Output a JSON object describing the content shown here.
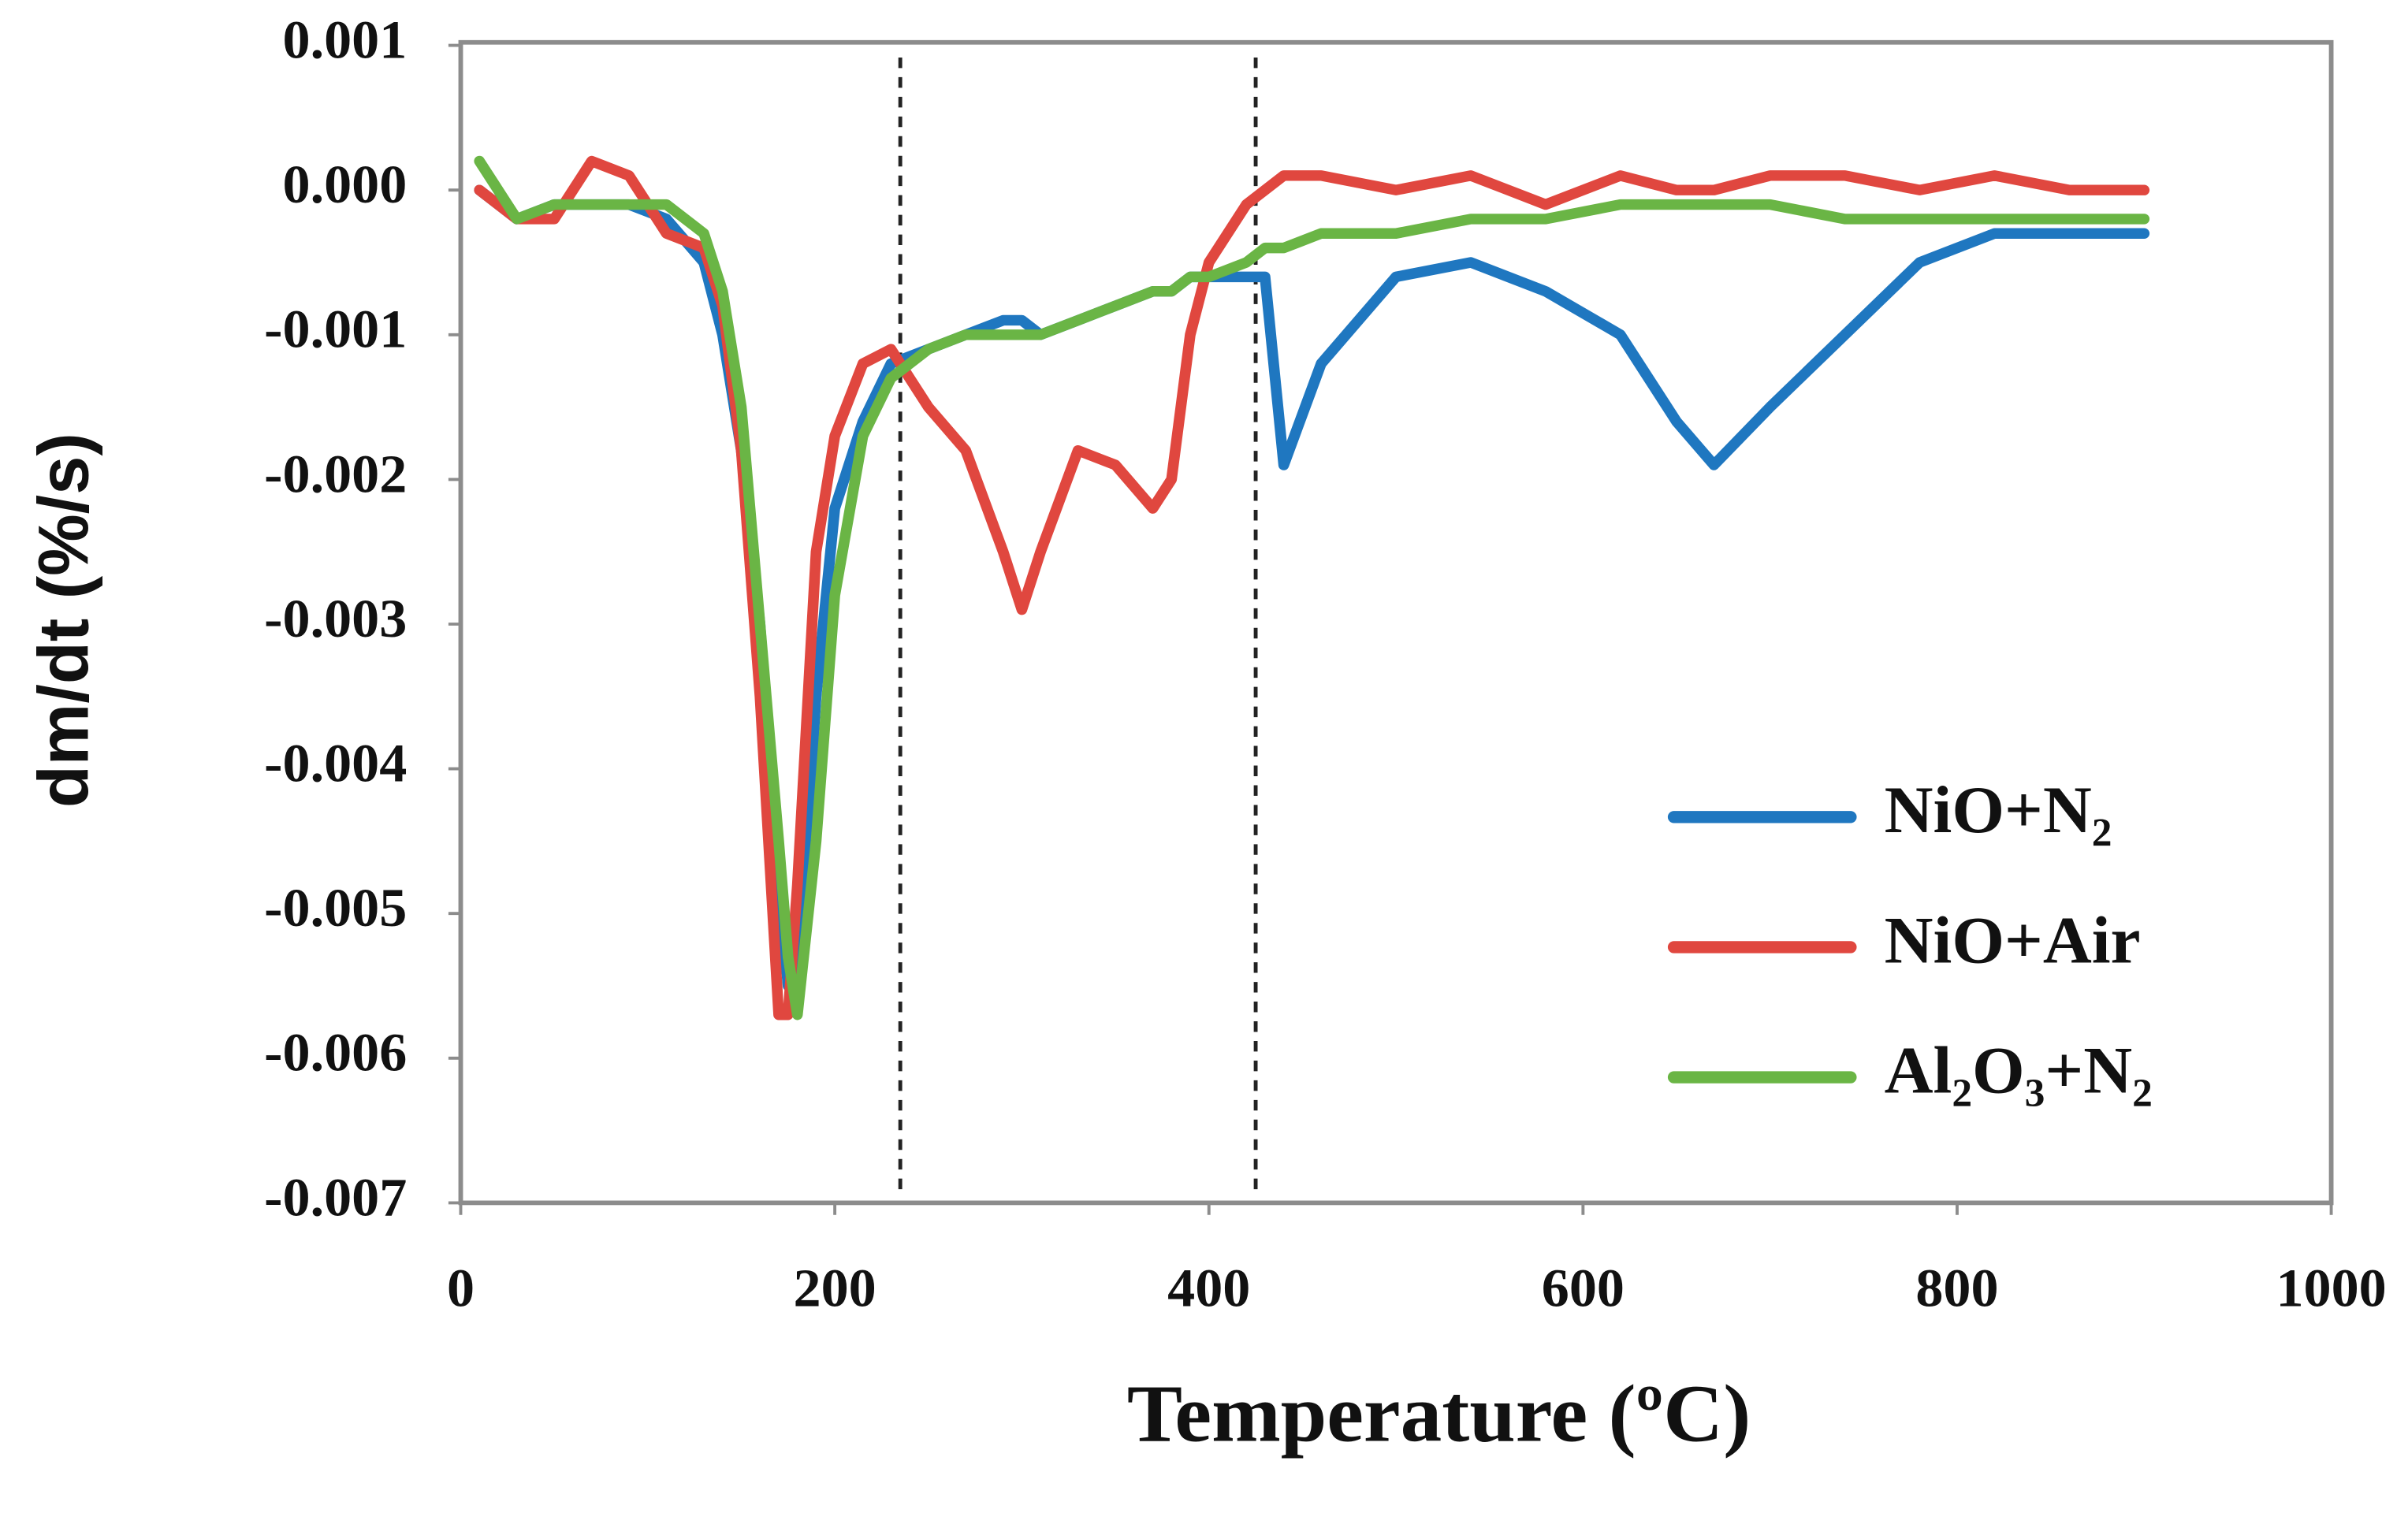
{
  "chart_data": {
    "type": "line",
    "x_label": "Temperature (ºC)",
    "y_label": "dm/dt (%/s)",
    "x": [
      10,
      30,
      50,
      70,
      90,
      110,
      130,
      140,
      150,
      160,
      170,
      175,
      180,
      190,
      200,
      215,
      230,
      250,
      270,
      290,
      300,
      310,
      330,
      350,
      370,
      380,
      390,
      400,
      420,
      430,
      440,
      460,
      500,
      540,
      580,
      620,
      650,
      670,
      700,
      740,
      780,
      820,
      860,
      900
    ],
    "series": [
      {
        "name": "NiO+N₂",
        "color": "#1f77c0",
        "values": [
          0,
          -0.0002,
          -0.0001,
          -0.0001,
          -0.0001,
          -0.0002,
          -0.0005,
          -0.001,
          -0.0018,
          -0.003,
          -0.0048,
          -0.0055,
          -0.0055,
          -0.0035,
          -0.0022,
          -0.0016,
          -0.0012,
          -0.0011,
          -0.001,
          -0.0009,
          -0.0009,
          -0.001,
          -0.0009,
          -0.0008,
          -0.0007,
          -0.0007,
          -0.0006,
          -0.0006,
          -0.0006,
          -0.0006,
          -0.0019,
          -0.0012,
          -0.0006,
          -0.0005,
          -0.0007,
          -0.001,
          -0.0016,
          -0.0019,
          -0.0015,
          -0.001,
          -0.0005,
          -0.0003,
          -0.0003,
          -0.0003
        ]
      },
      {
        "name": "NiO+Air",
        "color": "#e0473f",
        "values": [
          0,
          -0.0002,
          -0.0002,
          0.0002,
          0.0001,
          -0.0003,
          -0.0004,
          -0.0008,
          -0.0018,
          -0.0035,
          -0.0057,
          -0.0057,
          -0.0048,
          -0.0025,
          -0.0017,
          -0.0012,
          -0.0011,
          -0.0015,
          -0.0018,
          -0.0025,
          -0.0029,
          -0.0025,
          -0.0018,
          -0.0019,
          -0.0022,
          -0.002,
          -0.001,
          -0.0005,
          -0.0001,
          0,
          0.0001,
          0.0001,
          0,
          0.0001,
          -0.0001,
          0.0001,
          0,
          0,
          0.0001,
          0.0001,
          0,
          0.0001,
          0,
          0
        ]
      },
      {
        "name": "Al₂O₃+N₂",
        "color": "#6ab545",
        "values": [
          0.0002,
          -0.0002,
          -0.0001,
          -0.0001,
          -0.0001,
          -0.0001,
          -0.0003,
          -0.0007,
          -0.0015,
          -0.003,
          -0.0045,
          -0.0053,
          -0.0057,
          -0.0045,
          -0.0028,
          -0.0017,
          -0.0013,
          -0.0011,
          -0.001,
          -0.001,
          -0.001,
          -0.001,
          -0.0009,
          -0.0008,
          -0.0007,
          -0.0007,
          -0.0006,
          -0.0006,
          -0.0005,
          -0.0004,
          -0.0004,
          -0.0003,
          -0.0003,
          -0.0002,
          -0.0002,
          -0.0001,
          -0.0001,
          -0.0001,
          -0.0001,
          -0.0002,
          -0.0002,
          -0.0002,
          -0.0002,
          -0.0002
        ]
      }
    ],
    "xlim": [
      0,
      1000
    ],
    "xticks": [
      0,
      200,
      400,
      600,
      800,
      1000
    ],
    "ylim": [
      -0.007,
      0.001
    ],
    "yticks": [
      -0.007,
      -0.006,
      -0.005,
      -0.004,
      -0.003,
      -0.002,
      -0.001,
      {
        "value": 0,
        "label": "0.000"
      },
      0.001
    ],
    "vlines": [
      235,
      425
    ],
    "legend": "lower right",
    "grid": false
  }
}
